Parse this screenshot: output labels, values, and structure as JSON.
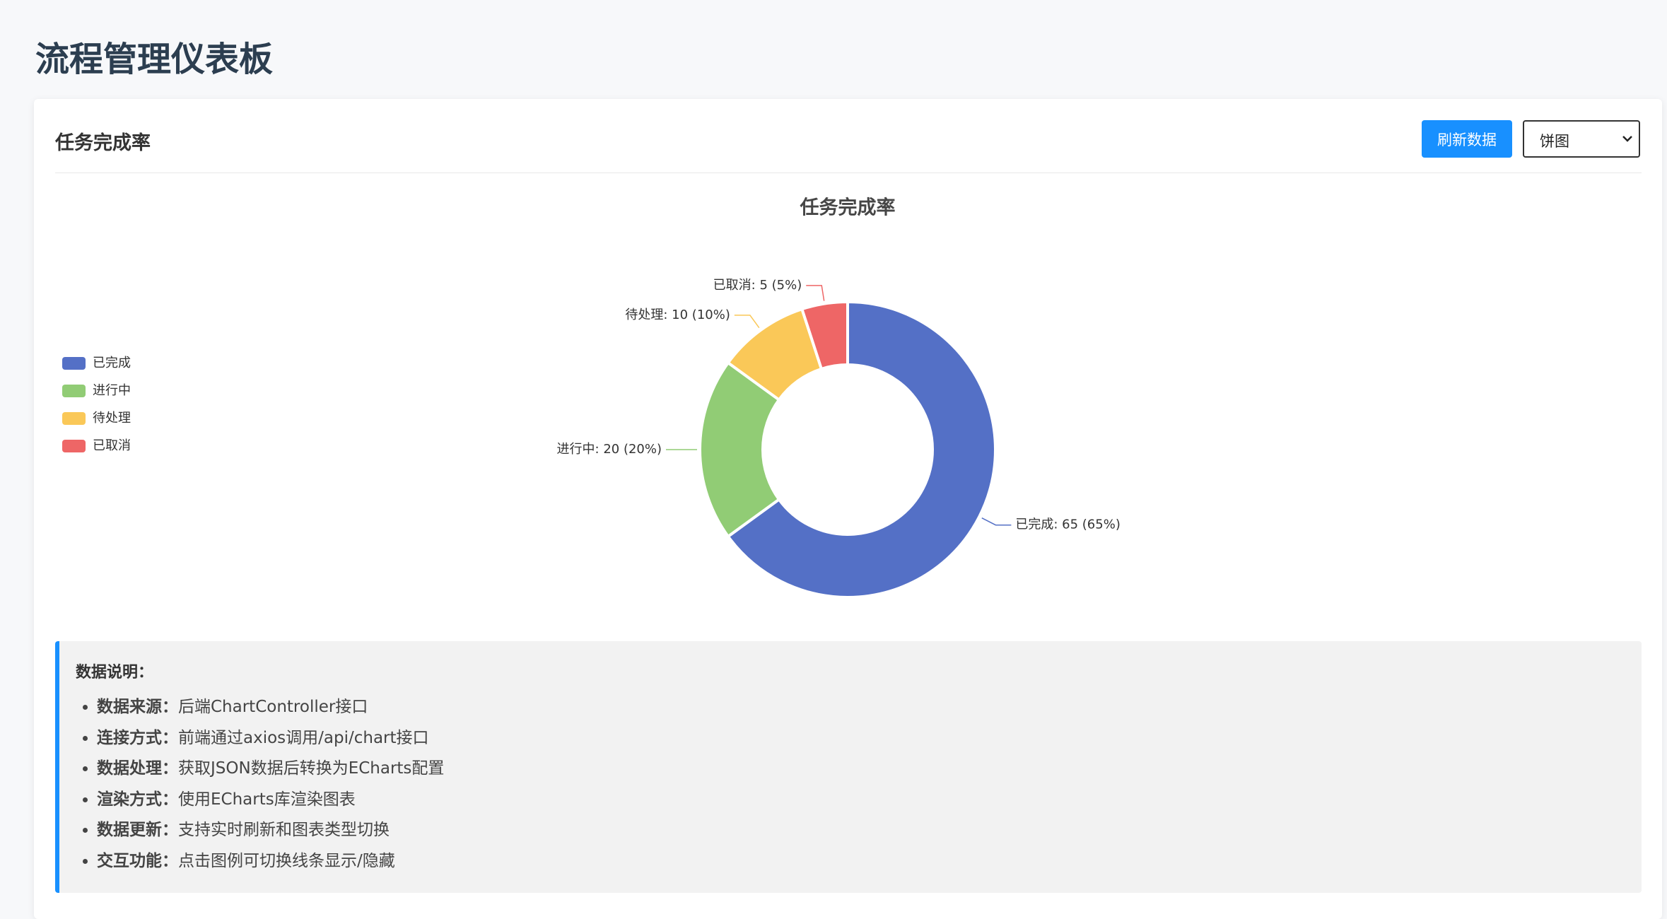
{
  "page": {
    "title": "流程管理仪表板"
  },
  "card": {
    "title": "任务完成率",
    "refresh_button": "刷新数据",
    "chart_type_select": "饼图"
  },
  "chart_data": {
    "type": "donut",
    "title": "任务完成率",
    "categories": [
      "已完成",
      "进行中",
      "待处理",
      "已取消"
    ],
    "values": [
      65,
      20,
      10,
      5
    ],
    "value_labels": [
      "已完成: 65 (65%)",
      "进行中: 20 (20%)",
      "待处理: 10 (10%)",
      "已取消: 5 (5%)"
    ],
    "colors": [
      "#5470c6",
      "#91cc75",
      "#fac858",
      "#ee6666"
    ],
    "legend": "left"
  },
  "notes": {
    "title": "数据说明：",
    "items": [
      {
        "label": "数据来源：",
        "text": "后端ChartController接口"
      },
      {
        "label": "连接方式：",
        "text": "前端通过axios调用/api/chart接口"
      },
      {
        "label": "数据处理：",
        "text": "获取JSON数据后转换为ECharts配置"
      },
      {
        "label": "渲染方式：",
        "text": "使用ECharts库渲染图表"
      },
      {
        "label": "数据更新：",
        "text": "支持实时刷新和图表类型切换"
      },
      {
        "label": "交互功能：",
        "text": "点击图例可切换线条显示/隐藏"
      }
    ]
  }
}
